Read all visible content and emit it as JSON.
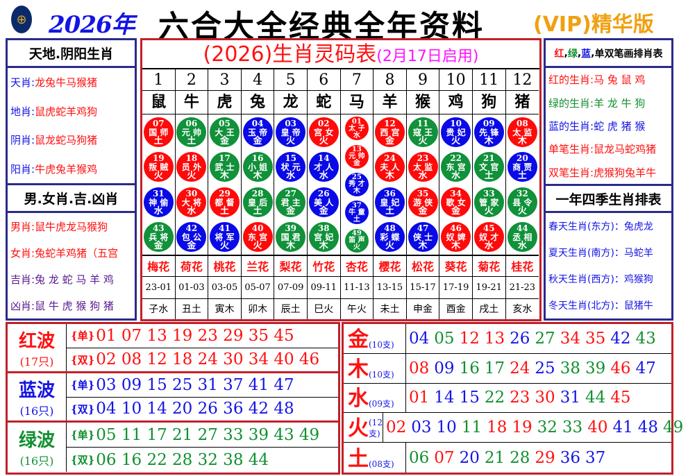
{
  "header": {
    "logo_icon": "hkjc-logo",
    "year": "2026年",
    "title": "六合大全经典全年资料",
    "vip": "(VIP)精华版"
  },
  "left": {
    "sec1_title": "天地.阴阳生肖",
    "sec1": [
      {
        "k": "天肖:",
        "v": "龙兔牛马猴猪"
      },
      {
        "k": "地肖:",
        "v": "鼠虎蛇羊鸡狗"
      },
      {
        "k": "阴肖:",
        "v": "鼠龙蛇马狗猪"
      },
      {
        "k": "阳肖:",
        "v": "牛虎兔羊猴鸡"
      }
    ],
    "sec2_title": "男.女肖.吉.凶肖",
    "sec2": [
      {
        "k": "男肖:",
        "v": "鼠牛虎龙马猴狗"
      },
      {
        "k": "女肖:",
        "v": "兔蛇羊鸡猪（五宫"
      },
      {
        "k": "吉肖:",
        "v": "兔 龙 蛇 马 羊 鸡"
      },
      {
        "k": "凶肖:",
        "v": "鼠 牛 虎 猴 狗 猪"
      }
    ]
  },
  "center": {
    "title": "(2026)生肖灵码表",
    "subtitle": "(2月17日启用)",
    "columns": [
      {
        "n": "1",
        "z": "鼠",
        "f": "梅花",
        "t": "23-01",
        "b": "子水",
        "balls": [
          [
            "07",
            "国 师",
            "土",
            "red"
          ],
          [
            "19",
            "叛 贼",
            "火",
            "red"
          ],
          [
            "31",
            "神 偷",
            "水",
            "blue"
          ],
          [
            "43",
            "兵 将",
            "金",
            "green"
          ]
        ]
      },
      {
        "n": "2",
        "z": "牛",
        "f": "荷花",
        "t": "01-03",
        "b": "丑土",
        "balls": [
          [
            "06",
            "元 帅",
            "土",
            "green"
          ],
          [
            "18",
            "员 外",
            "火",
            "red"
          ],
          [
            "30",
            "大 将",
            "水",
            "red"
          ],
          [
            "42",
            "包 公",
            "金",
            "blue"
          ]
        ]
      },
      {
        "n": "3",
        "z": "虎",
        "f": "桃花",
        "t": "03-05",
        "b": "寅木",
        "balls": [
          [
            "05",
            "大 王",
            "金",
            "green"
          ],
          [
            "17",
            "武 士",
            "木",
            "green"
          ],
          [
            "29",
            "都 督",
            "土",
            "red"
          ],
          [
            "41",
            "将 军",
            "火",
            "blue"
          ]
        ]
      },
      {
        "n": "4",
        "z": "兔",
        "f": "兰花",
        "t": "05-07",
        "b": "卯木",
        "balls": [
          [
            "04",
            "玉 帝",
            "金",
            "blue"
          ],
          [
            "16",
            "小 姐",
            "木",
            "green"
          ],
          [
            "28",
            "皇 后",
            "土",
            "green"
          ],
          [
            "40",
            "东 宫",
            "火",
            "red"
          ]
        ]
      },
      {
        "n": "5",
        "z": "龙",
        "f": "梨花",
        "t": "07-09",
        "b": "辰土",
        "balls": [
          [
            "03",
            "皇 帝",
            "火",
            "blue"
          ],
          [
            "15",
            "状 元",
            "水",
            "blue"
          ],
          [
            "27",
            "君 主",
            "金",
            "green"
          ],
          [
            "39",
            "国 君",
            "木",
            "green"
          ]
        ]
      },
      {
        "n": "6",
        "z": "蛇",
        "f": "竹花",
        "t": "09-11",
        "b": "巳火",
        "balls": [
          [
            "02",
            "宫 女",
            "火",
            "red"
          ],
          [
            "14",
            "才 人",
            "水",
            "blue"
          ],
          [
            "26",
            "美 人",
            "金",
            "blue"
          ],
          [
            "38",
            "宫 妃",
            "木",
            "green"
          ]
        ]
      },
      {
        "n": "7",
        "z": "马",
        "f": "杏花",
        "t": "11-13",
        "b": "午火",
        "balls": [
          [
            "01",
            "太 子",
            "水",
            "red"
          ],
          [
            "13",
            "元 帅",
            "金",
            "red"
          ],
          [
            "25",
            "秀 才",
            "木",
            "blue"
          ],
          [
            "37",
            "牛 童",
            "土",
            "blue"
          ],
          [
            "49",
            "笛 声",
            "火",
            "green"
          ]
        ]
      },
      {
        "n": "8",
        "z": "羊",
        "f": "樱花",
        "t": "13-15",
        "b": "未土",
        "balls": [
          [
            "12",
            "西 宫",
            "金",
            "red"
          ],
          [
            "24",
            "夫 人",
            "木",
            "red"
          ],
          [
            "36",
            "皇 妃",
            "土",
            "blue"
          ],
          [
            "48",
            "彩 蝶",
            "火",
            "blue"
          ]
        ]
      },
      {
        "n": "9",
        "z": "猴",
        "f": "松花",
        "t": "15-17",
        "b": "申金",
        "balls": [
          [
            "11",
            "寇 王",
            "火",
            "green"
          ],
          [
            "23",
            "太 监",
            "水",
            "red"
          ],
          [
            "35",
            "游 侠",
            "金",
            "red"
          ],
          [
            "47",
            "侠 士",
            "木",
            "blue"
          ]
        ]
      },
      {
        "n": "10",
        "z": "鸡",
        "f": "葵花",
        "t": "17-19",
        "b": "酉金",
        "balls": [
          [
            "10",
            "贵 妃",
            "火",
            "blue"
          ],
          [
            "22",
            "东 宫",
            "水",
            "green"
          ],
          [
            "34",
            "歌 女",
            "金",
            "red"
          ],
          [
            "46",
            "奴 婢",
            "木",
            "red"
          ]
        ]
      },
      {
        "n": "11",
        "z": "狗",
        "f": "菊花",
        "t": "19-21",
        "b": "戌土",
        "balls": [
          [
            "09",
            "先 锋",
            "木",
            "blue"
          ],
          [
            "21",
            "文 官",
            "土",
            "green"
          ],
          [
            "33",
            "管 家",
            "火",
            "green"
          ],
          [
            "45",
            "奴 才",
            "水",
            "red"
          ]
        ]
      },
      {
        "n": "12",
        "z": "猪",
        "f": "桂花",
        "t": "21-23",
        "b": "亥水",
        "balls": [
          [
            "08",
            "太 监",
            "木",
            "red"
          ],
          [
            "20",
            "商 贾",
            "土",
            "blue"
          ],
          [
            "32",
            "县 令",
            "火",
            "green"
          ],
          [
            "44",
            "丞 相",
            "水",
            "green"
          ]
        ]
      }
    ]
  },
  "right": {
    "sec1_title": {
      "r": "红",
      "g": "绿",
      "b": "蓝",
      "rest": "单双笔画排肖表"
    },
    "sec1": [
      {
        "k": "红的生肖:",
        "v": "马 兔 鼠 鸡",
        "c": "red"
      },
      {
        "k": "绿的生肖:",
        "v": "羊 龙 牛 狗",
        "c": "green"
      },
      {
        "k": "蓝的生肖:",
        "v": "蛇 虎 猪 猴",
        "c": "blue"
      },
      {
        "k": "单笔生肖:",
        "v": "鼠龙马蛇鸡猪",
        "c": "red"
      },
      {
        "k": "双笔生肖:",
        "v": "虎猴狗兔羊牛",
        "c": "red"
      }
    ],
    "sec2_title": "一年四季生肖排表",
    "sec2": [
      "春天生肖(东方)：兔虎龙",
      "夏天生肖(南方)：马蛇羊",
      "秋天生肖(西方)：鸡猴狗",
      "冬天生肖(北方)：鼠猪牛"
    ]
  },
  "waves": [
    {
      "name": "红波",
      "count": "(17只)",
      "color": "red",
      "odd_tag": "{单}",
      "odd": "01 07 13 19 23 29 35 45",
      "even_tag": "{双}",
      "even": "02 08 12 18 24 30 34 40 46"
    },
    {
      "name": "蓝波",
      "count": "(16只)",
      "color": "blue",
      "odd_tag": "{单}",
      "odd": "03 09 15 25 31 37 41 47",
      "even_tag": "{双}",
      "even": "04 10 14 20 26 36 42 48"
    },
    {
      "name": "绿波",
      "count": "(16只)",
      "color": "green",
      "odd_tag": "{单}",
      "odd": "05 11 17 21 27 33 39 43 49",
      "even_tag": "{双}",
      "even": "06 16 22 28 32 38 44"
    }
  ],
  "elements": [
    {
      "name": "金",
      "count": "(10支)",
      "nums": [
        "04",
        "05",
        "12",
        "13",
        "26",
        "27",
        "34",
        "35",
        "42",
        "43"
      ]
    },
    {
      "name": "木",
      "count": "(10支)",
      "nums": [
        "08",
        "09",
        "16",
        "17",
        "24",
        "25",
        "38",
        "39",
        "46",
        "47"
      ]
    },
    {
      "name": "水",
      "count": "(09支)",
      "nums": [
        "01",
        "14",
        "15",
        "22",
        "23",
        "30",
        "31",
        "44",
        "45"
      ]
    },
    {
      "name": "火",
      "count": "(12支)",
      "nums": [
        "02",
        "03",
        "10",
        "11",
        "18",
        "19",
        "32",
        "33",
        "40",
        "41",
        "48",
        "49"
      ]
    },
    {
      "name": "土",
      "count": "(08支)",
      "nums": [
        "06",
        "07",
        "20",
        "21",
        "28",
        "29",
        "36",
        "37"
      ]
    }
  ],
  "colors": {
    "red": "#ff1010",
    "blue": "#1414e6",
    "green": "#119030",
    "ball_red": "#ff0a0a",
    "ball_blue": "#0a0ae6",
    "ball_green": "#10913a",
    "border_red": "#c0202a",
    "border_navy": "#2a2a8a"
  }
}
